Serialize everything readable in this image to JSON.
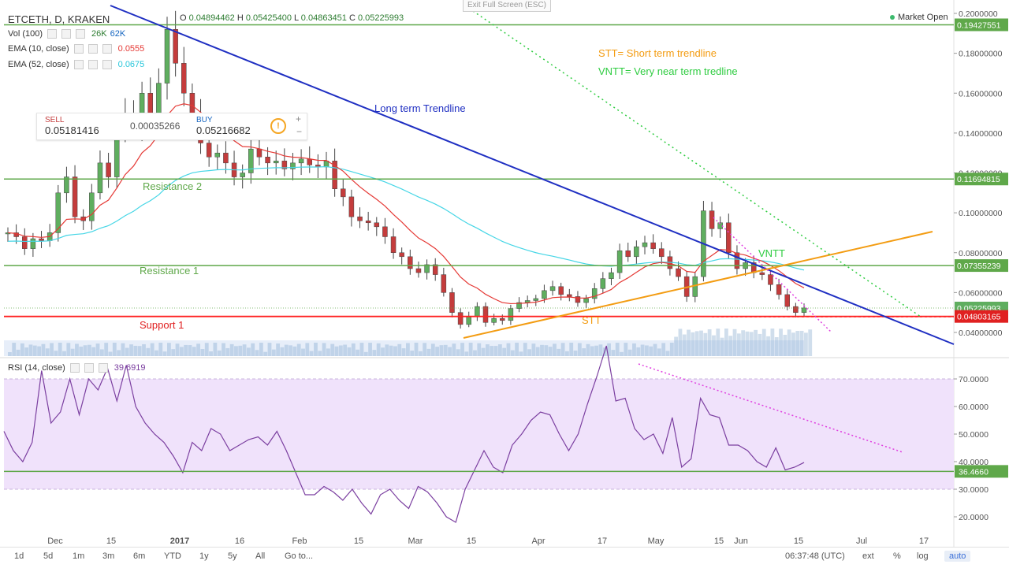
{
  "header": {
    "symbol": "ETCETH, D, KRAKEN",
    "ohlc": {
      "o_label": "O",
      "o": "0.04894462",
      "h_label": "H",
      "h": "0.05425400",
      "l_label": "L",
      "l": "0.04863451",
      "c_label": "C",
      "c": "0.05225993"
    }
  },
  "indicators": [
    {
      "label": "Vol (100)",
      "values": [
        "26K",
        "62K"
      ],
      "colors": [
        "#2e7d32",
        "#1565c0"
      ]
    },
    {
      "label": "EMA (10, close)",
      "values": [
        "0.0555"
      ],
      "colors": [
        "#e53935"
      ]
    },
    {
      "label": "EMA (52, close)",
      "values": [
        "0.0675"
      ],
      "colors": [
        "#26c6da"
      ]
    }
  ],
  "exit_fullscreen": "Exit Full Screen (ESC)",
  "market_status": "Market Open",
  "trade_panel": {
    "sell_label": "SELL",
    "sell_price": "0.05181416",
    "spread": "0.00035266",
    "buy_label": "BUY",
    "buy_price": "0.05216682",
    "info_icon": "!",
    "plus": "+",
    "minus": "−"
  },
  "rsi_header": {
    "label": "RSI (14, close)",
    "value": "39.6919"
  },
  "bottom_toolbar": {
    "ranges": [
      "1d",
      "5d",
      "1m",
      "3m",
      "6m",
      "YTD",
      "1y",
      "5y",
      "All"
    ],
    "goto": "Go to...",
    "time": "06:37:48 (UTC)",
    "options": [
      "ext",
      "%",
      "log",
      "auto"
    ]
  },
  "colors": {
    "up": "#5fae5f",
    "down": "#c43c3c",
    "ema10": "#e53935",
    "ema52": "#46d6e6",
    "trend": "#1f2fc2",
    "stt": "#f39c12",
    "vntt": "#2ecc40",
    "support": "#ff2020",
    "resistance": "#5fa84a",
    "rsi": "#7b3fa0"
  },
  "chart_data": [
    {
      "type": "candlestick",
      "title": "ETCETH, D, KRAKEN",
      "price_axis_ticks": [
        "0.2000000",
        "0.18000000",
        "0.16000000",
        "0.14000000",
        "0.12000000",
        "0.10000000",
        "0.08000000",
        "0.06000000",
        "0.04000000"
      ],
      "x_ticks": [
        "Dec",
        "15",
        "2017",
        "16",
        "Feb",
        "15",
        "Mar",
        "15",
        "Apr",
        "17",
        "May",
        "15",
        "Jun",
        "15",
        "Jul",
        "17"
      ],
      "ylim": [
        0.03,
        0.205
      ],
      "price_labels": [
        {
          "value": 0.19427551,
          "text": "0.19427551",
          "kind": "resistance"
        },
        {
          "value": 0.11694815,
          "text": "0.11694815",
          "kind": "resistance"
        },
        {
          "value": 0.07355239,
          "text": "0.07355239",
          "kind": "resistance"
        },
        {
          "value": 0.05225993,
          "text": "0.05225993",
          "kind": "last"
        },
        {
          "value": 0.04803165,
          "text": "0.04803165",
          "kind": "support"
        }
      ],
      "horizontal_levels": [
        {
          "name": "Resistance 2",
          "value": 0.11694815
        },
        {
          "name": "Resistance 1",
          "value": 0.07355239
        },
        {
          "name": "Support 1",
          "value": 0.04803165
        }
      ],
      "annotations": {
        "long_term": "Long term Trendline",
        "legend_stt": "STT= Short term trendline",
        "legend_vntt": "VNTT= Very near term tredline",
        "stt": "STT",
        "vntt": "VNTT",
        "res2": "Resistance 2",
        "res1": "Resistance 1",
        "sup1": "Support 1"
      },
      "close_path": [
        0.09,
        0.088,
        0.082,
        0.087,
        0.086,
        0.09,
        0.11,
        0.118,
        0.098,
        0.096,
        0.11,
        0.125,
        0.118,
        0.14,
        0.15,
        0.143,
        0.16,
        0.15,
        0.165,
        0.192,
        0.175,
        0.16,
        0.15,
        0.135,
        0.128,
        0.13,
        0.125,
        0.118,
        0.12,
        0.132,
        0.128,
        0.125,
        0.126,
        0.122,
        0.125,
        0.127,
        0.124,
        0.123,
        0.126,
        0.112,
        0.108,
        0.098,
        0.096,
        0.095,
        0.093,
        0.088,
        0.08,
        0.078,
        0.072,
        0.07,
        0.074,
        0.069,
        0.06,
        0.05,
        0.044,
        0.048,
        0.053,
        0.045,
        0.047,
        0.046,
        0.052,
        0.055,
        0.056,
        0.057,
        0.061,
        0.063,
        0.059,
        0.058,
        0.055,
        0.057,
        0.062,
        0.067,
        0.07,
        0.081,
        0.078,
        0.083,
        0.085,
        0.082,
        0.078,
        0.072,
        0.068,
        0.058,
        0.068,
        0.101,
        0.092,
        0.095,
        0.08,
        0.072,
        0.075,
        0.07,
        0.069,
        0.064,
        0.059,
        0.053,
        0.05,
        0.0523
      ]
    },
    {
      "type": "line",
      "title": "RSI (14, close)",
      "y_ticks": [
        "70.0000",
        "60.0000",
        "50.0000",
        "40.0000",
        "30.0000",
        "20.0000"
      ],
      "ylim": [
        13,
        82
      ],
      "band": [
        30,
        70
      ],
      "level_label": {
        "value": 36.466,
        "text": "36.4660"
      },
      "values": [
        51,
        44,
        40,
        47,
        73,
        54,
        58,
        70,
        57,
        70,
        66,
        74,
        62,
        75,
        60,
        54,
        50,
        47,
        42,
        36,
        47,
        44,
        52,
        50,
        44,
        46,
        48,
        49,
        46,
        51,
        44,
        36,
        28,
        28,
        31,
        29,
        26,
        30,
        25,
        21,
        28,
        30,
        26,
        23,
        31,
        29,
        25,
        20,
        18,
        30,
        37,
        44,
        38,
        36,
        46,
        50,
        55,
        58,
        57,
        50,
        44,
        50,
        61,
        71,
        82,
        62,
        63,
        52,
        48,
        50,
        43,
        56,
        38,
        41,
        63,
        57,
        56,
        46,
        46,
        44,
        40,
        38,
        45,
        37,
        38,
        39.69
      ]
    }
  ]
}
